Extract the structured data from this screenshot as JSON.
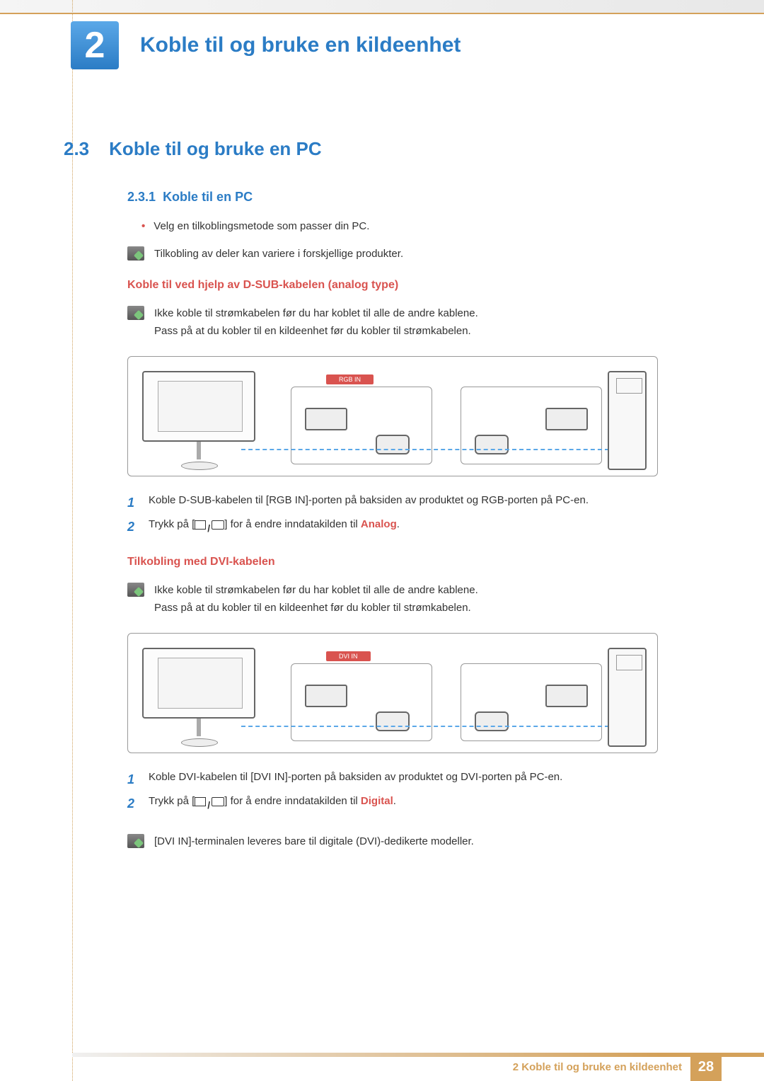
{
  "chapter": {
    "number": "2",
    "title": "Koble til og bruke en kildeenhet"
  },
  "section": {
    "number": "2.3",
    "title": "Koble til og bruke en PC"
  },
  "subsection": {
    "number": "2.3.1",
    "title": "Koble til en PC"
  },
  "bullet1": "Velg en tilkoblingsmetode som passer din PC.",
  "note_variation": "Tilkobling av deler kan variere i forskjellige produkter.",
  "dsub": {
    "heading": "Koble til ved hjelp av D-SUB-kabelen (analog type)",
    "note_line1": "Ikke koble til strømkabelen før du har koblet til alle de andre kablene.",
    "note_line2": "Pass på at du kobler til en kildeenhet før du kobler til strømkabelen.",
    "port_label": "RGB IN",
    "step1": "Koble D-SUB-kabelen til [RGB IN]-porten på baksiden av produktet og RGB-porten på PC-en.",
    "step2_a": "Trykk på [",
    "step2_b": "] for å endre inndatakilden til ",
    "step2_mode": "Analog",
    "step2_c": "."
  },
  "dvi": {
    "heading": "Tilkobling med DVI-kabelen",
    "note_line1": "Ikke koble til strømkabelen før du har koblet til alle de andre kablene.",
    "note_line2": "Pass på at du kobler til en kildeenhet før du kobler til strømkabelen.",
    "port_label": "DVI IN",
    "step1": "Koble DVI-kabelen til [DVI IN]-porten på baksiden av produktet og DVI-porten på PC-en.",
    "step2_a": "Trykk på [",
    "step2_b": "] for å endre inndatakilden til ",
    "step2_mode": "Digital",
    "step2_c": ".",
    "note_bottom": "[DVI IN]-terminalen leveres bare til digitale (DVI)-dedikerte modeller."
  },
  "footer": {
    "text": "2 Koble til og bruke en kildeenhet",
    "page": "28"
  },
  "colors": {
    "accent_blue": "#2b7cc5",
    "accent_red": "#d9534f",
    "accent_gold": "#d4a15a"
  }
}
